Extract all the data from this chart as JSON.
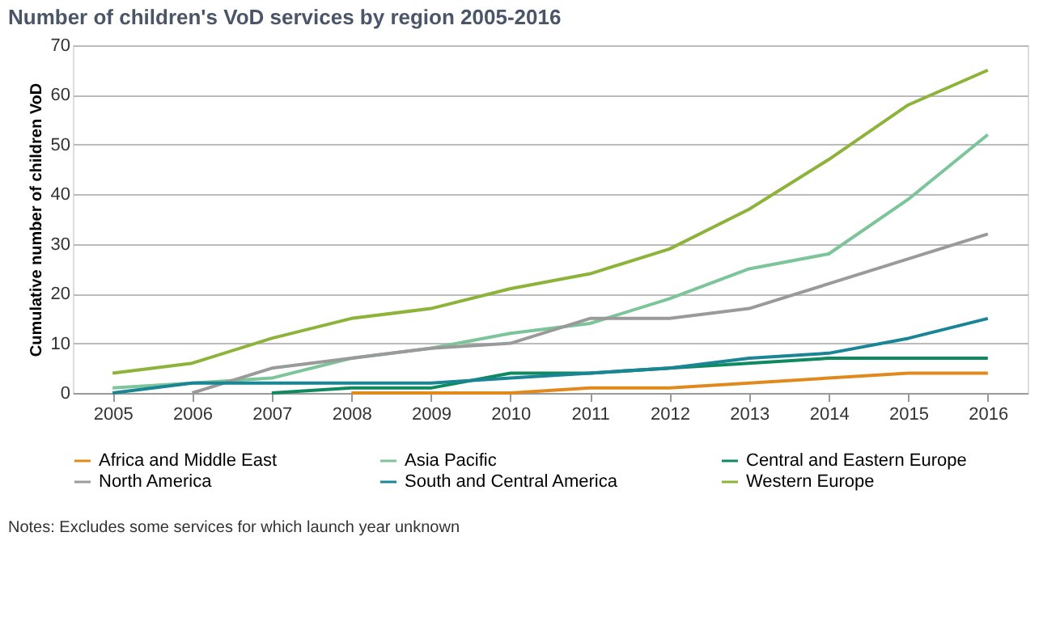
{
  "chart_data": {
    "type": "line",
    "title": "Number of children's VoD services by region 2005-2016",
    "ylabel": "Cumulative number of children VoD",
    "categories": [
      "2005",
      "2006",
      "2007",
      "2008",
      "2009",
      "2010",
      "2011",
      "2012",
      "2013",
      "2014",
      "2015",
      "2016"
    ],
    "series": [
      {
        "name": "Africa and Middle East",
        "color": "#e08a1e",
        "values": [
          null,
          null,
          null,
          0,
          0,
          0,
          1,
          1,
          2,
          3,
          4,
          4
        ]
      },
      {
        "name": "Asia Pacific",
        "color": "#7cc49a",
        "values": [
          1,
          2,
          3,
          7,
          9,
          12,
          14,
          19,
          25,
          28,
          39,
          52
        ]
      },
      {
        "name": "Central and Eastern Europe",
        "color": "#0f8a5f",
        "values": [
          null,
          null,
          0,
          1,
          1,
          4,
          4,
          5,
          6,
          7,
          7,
          7
        ]
      },
      {
        "name": "North America",
        "color": "#9a9a9a",
        "values": [
          null,
          0,
          5,
          7,
          9,
          10,
          15,
          15,
          17,
          22,
          27,
          32
        ]
      },
      {
        "name": "South and Central America",
        "color": "#1a8595",
        "values": [
          0,
          2,
          2,
          2,
          2,
          3,
          4,
          5,
          7,
          8,
          11,
          15
        ]
      },
      {
        "name": "Western Europe",
        "color": "#8db33a",
        "values": [
          4,
          6,
          11,
          15,
          17,
          21,
          24,
          29,
          37,
          47,
          58,
          65
        ]
      }
    ],
    "ylim": [
      0,
      70
    ],
    "yticks": [
      0,
      10,
      20,
      30,
      40,
      50,
      60,
      70
    ],
    "grid": "y",
    "legend": "bottom",
    "marker": "none",
    "line_style": "solid",
    "annotations": [
      "Notes: Excludes some services for which launch year unknown"
    ]
  }
}
